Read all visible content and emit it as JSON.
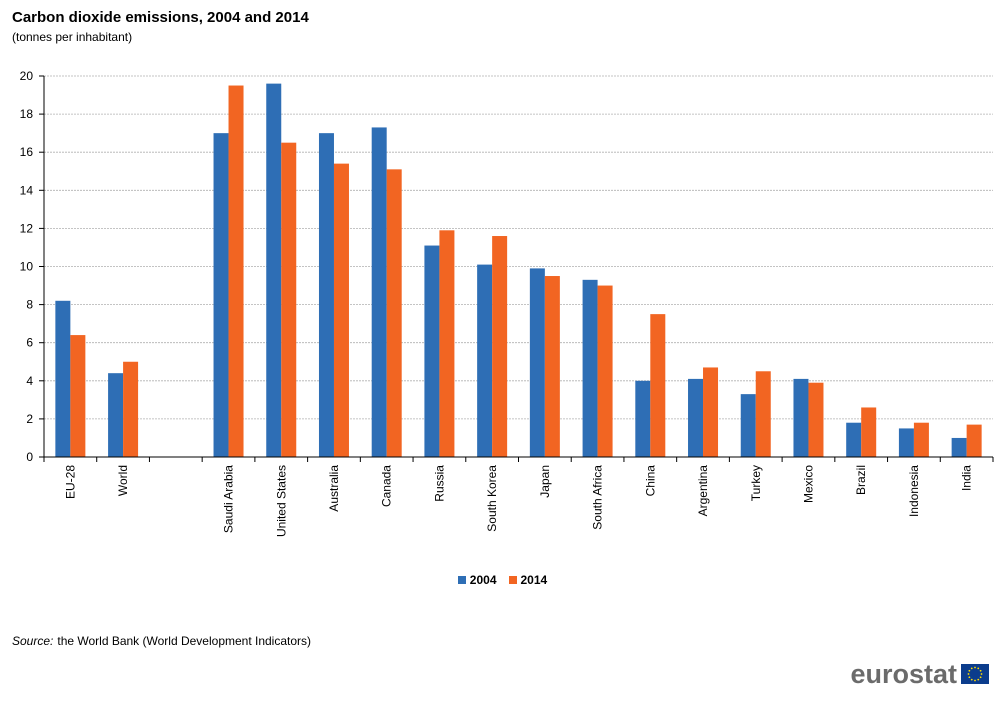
{
  "header": {
    "title": "Carbon dioxide emissions, 2004 and 2014",
    "subtitle": "(tonnes per inhabitant)"
  },
  "footer": {
    "source_label": "Source:",
    "source_text": "the World Bank (World Development Indicators)",
    "logo_text": "eurostat",
    "logo_icon": "eu-flag-icon"
  },
  "colors": {
    "series_2004": "#2e6eb5",
    "series_2014": "#f26522",
    "grid": "#b0b0b0",
    "axis": "#000000",
    "eu_flag_blue": "#0b3c8c",
    "eu_flag_star": "#ffdd00"
  },
  "chart_data": {
    "type": "bar",
    "title": "Carbon dioxide emissions, 2004 and 2014",
    "subtitle": "(tonnes per inhabitant)",
    "xlabel": "",
    "ylabel": "",
    "ylim": [
      0,
      20
    ],
    "yticks": [
      0,
      2,
      4,
      6,
      8,
      10,
      12,
      14,
      16,
      18,
      20
    ],
    "grid": true,
    "legend_position": "bottom",
    "categories": [
      "EU-28",
      "World",
      "",
      "Saudi Arabia",
      "United States",
      "Australia",
      "Canada",
      "Russia",
      "South Korea",
      "Japan",
      "South Africa",
      "China",
      "Argentina",
      "Turkey",
      "Mexico",
      "Brazil",
      "Indonesia",
      "India"
    ],
    "series": [
      {
        "name": "2004",
        "values": [
          8.2,
          4.4,
          null,
          17.0,
          19.6,
          17.0,
          17.3,
          11.1,
          10.1,
          9.9,
          9.3,
          4.0,
          4.1,
          3.3,
          4.1,
          1.8,
          1.5,
          1.0
        ]
      },
      {
        "name": "2014",
        "values": [
          6.4,
          5.0,
          null,
          19.5,
          16.5,
          15.4,
          15.1,
          11.9,
          11.6,
          9.5,
          9.0,
          7.5,
          4.7,
          4.5,
          3.9,
          2.6,
          1.8,
          1.7
        ]
      }
    ]
  }
}
